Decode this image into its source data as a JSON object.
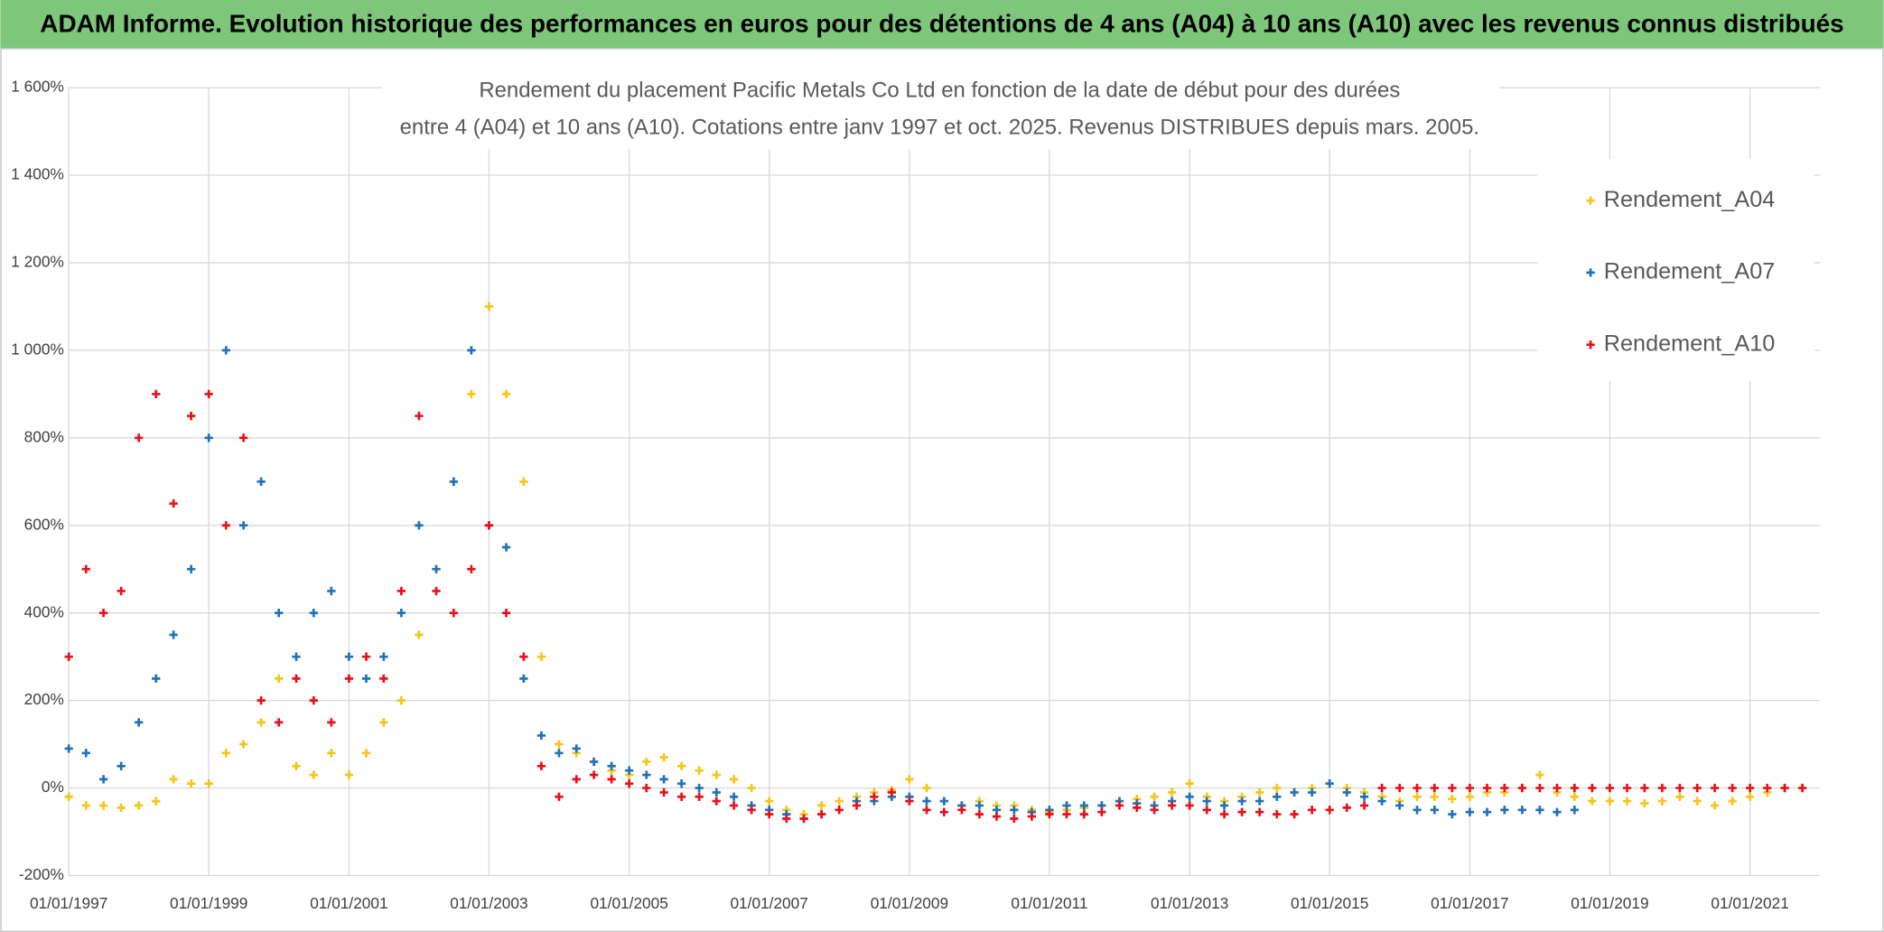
{
  "heading": "ADAM Informe. Evolution historique des performances en euros pour des détentions de 4 ans (A04) à 10 ans (A10) avec les revenus connus distribués",
  "chart_data": {
    "type": "scatter",
    "title": [
      "Rendement du placement Pacific Metals Co Ltd en fonction de la date de début pour des durées",
      "entre 4 (A04) et 10 ans (A10). Cotations entre janv 1997 et oct. 2025. Revenus DISTRIBUES depuis mars. 2005."
    ],
    "x": [
      "1997-01-01",
      "1997-04-01",
      "1997-07-01",
      "1997-10-01",
      "1998-01-01",
      "1998-04-01",
      "1998-07-01",
      "1998-10-01",
      "1999-01-01",
      "1999-04-01",
      "1999-07-01",
      "1999-10-01",
      "2000-01-01",
      "2000-04-01",
      "2000-07-01",
      "2000-10-01",
      "2001-01-01",
      "2001-04-01",
      "2001-07-01",
      "2001-10-01",
      "2002-01-01",
      "2002-04-01",
      "2002-07-01",
      "2002-10-01",
      "2003-01-01",
      "2003-04-01",
      "2003-07-01",
      "2003-10-01",
      "2004-01-01",
      "2004-04-01",
      "2004-07-01",
      "2004-10-01",
      "2005-01-01",
      "2005-04-01",
      "2005-07-01",
      "2005-10-01",
      "2006-01-01",
      "2006-04-01",
      "2006-07-01",
      "2006-10-01",
      "2007-01-01",
      "2007-04-01",
      "2007-07-01",
      "2007-10-01",
      "2008-01-01",
      "2008-04-01",
      "2008-07-01",
      "2008-10-01",
      "2009-01-01",
      "2009-04-01",
      "2009-07-01",
      "2009-10-01",
      "2010-01-01",
      "2010-04-01",
      "2010-07-01",
      "2010-10-01",
      "2011-01-01",
      "2011-04-01",
      "2011-07-01",
      "2011-10-01",
      "2012-01-01",
      "2012-04-01",
      "2012-07-01",
      "2012-10-01",
      "2013-01-01",
      "2013-04-01",
      "2013-07-01",
      "2013-10-01",
      "2014-01-01",
      "2014-04-01",
      "2014-07-01",
      "2014-10-01",
      "2015-01-01",
      "2015-04-01",
      "2015-07-01",
      "2015-10-01",
      "2016-01-01",
      "2016-04-01",
      "2016-07-01",
      "2016-10-01",
      "2017-01-01",
      "2017-04-01",
      "2017-07-01",
      "2017-10-01",
      "2018-01-01",
      "2018-04-01",
      "2018-07-01",
      "2018-10-01",
      "2019-01-01",
      "2019-04-01",
      "2019-07-01",
      "2019-10-01",
      "2020-01-01",
      "2020-04-01",
      "2020-07-01",
      "2020-10-01",
      "2021-01-01",
      "2021-04-01",
      "2021-07-01",
      "2021-10-01"
    ],
    "series": [
      {
        "name": "Rendement_A04",
        "color": "#f5c518",
        "values": [
          -20,
          -40,
          -40,
          -45,
          -40,
          -30,
          20,
          10,
          10,
          80,
          100,
          150,
          250,
          50,
          30,
          80,
          30,
          80,
          150,
          200,
          350,
          500,
          700,
          900,
          1100,
          900,
          700,
          300,
          100,
          80,
          60,
          40,
          30,
          60,
          70,
          50,
          40,
          30,
          20,
          0,
          -30,
          -50,
          -60,
          -40,
          -30,
          -20,
          -10,
          -5,
          20,
          0,
          -30,
          -40,
          -30,
          -40,
          -40,
          -50,
          -55,
          -50,
          -45,
          -40,
          -30,
          -25,
          -20,
          -10,
          10,
          -20,
          -30,
          -20,
          -10,
          0,
          -10,
          0,
          10,
          0,
          -10,
          -20,
          -30,
          -20,
          -20,
          -25,
          -20,
          -10,
          -10,
          0,
          30,
          -10,
          -20,
          -30,
          -30,
          -30,
          -35,
          -30,
          -20,
          -30,
          -40,
          -30,
          -20,
          -10,
          0,
          0
        ]
      },
      {
        "name": "Rendement_A07",
        "color": "#1f72b8",
        "values": [
          90,
          80,
          20,
          50,
          150,
          250,
          350,
          500,
          800,
          1000,
          600,
          700,
          400,
          300,
          400,
          450,
          300,
          250,
          300,
          400,
          600,
          500,
          700,
          1000,
          600,
          550,
          250,
          120,
          80,
          90,
          60,
          50,
          40,
          30,
          20,
          10,
          0,
          -10,
          -20,
          -40,
          -50,
          -60,
          -70,
          -60,
          -50,
          -30,
          -30,
          -20,
          -20,
          -30,
          -30,
          -40,
          -40,
          -50,
          -50,
          -55,
          -50,
          -40,
          -40,
          -40,
          -30,
          -35,
          -40,
          -30,
          -20,
          -30,
          -40,
          -30,
          -30,
          -20,
          -10,
          -10,
          10,
          -10,
          -20,
          -30,
          -40,
          -50,
          -50,
          -60,
          -55,
          -55,
          -50,
          -50,
          -50,
          -55,
          -50,
          null,
          null,
          null,
          null,
          null,
          null,
          null,
          null,
          null,
          null,
          null,
          null,
          null
        ]
      },
      {
        "name": "Rendement_A10",
        "color": "#e8101a",
        "values": [
          300,
          500,
          400,
          450,
          800,
          900,
          650,
          850,
          900,
          600,
          800,
          200,
          150,
          250,
          200,
          150,
          250,
          300,
          250,
          450,
          850,
          450,
          400,
          500,
          600,
          400,
          300,
          50,
          -20,
          20,
          30,
          20,
          10,
          0,
          -10,
          -20,
          -20,
          -30,
          -40,
          -50,
          -60,
          -70,
          -70,
          -60,
          -50,
          -40,
          -20,
          -10,
          -30,
          -50,
          -55,
          -50,
          -60,
          -65,
          -70,
          -65,
          -60,
          -60,
          -60,
          -55,
          -40,
          -45,
          -50,
          -40,
          -40,
          -50,
          -60,
          -55,
          -55,
          -60,
          -60,
          -50,
          -50,
          -45,
          -40,
          0,
          0,
          0,
          0,
          0,
          0,
          0,
          0,
          0,
          0,
          0,
          0,
          0,
          0,
          0,
          0,
          0,
          0,
          0,
          0,
          0,
          0,
          0,
          0,
          0
        ]
      }
    ],
    "xlim": [
      "1997-01-01",
      "2022-01-01"
    ],
    "xticks": [
      {
        "value": "1997-01-01",
        "label": "01/01/1997"
      },
      {
        "value": "1999-01-01",
        "label": "01/01/1999"
      },
      {
        "value": "2001-01-01",
        "label": "01/01/2001"
      },
      {
        "value": "2003-01-01",
        "label": "01/01/2003"
      },
      {
        "value": "2005-01-01",
        "label": "01/01/2005"
      },
      {
        "value": "2007-01-01",
        "label": "01/01/2007"
      },
      {
        "value": "2009-01-01",
        "label": "01/01/2009"
      },
      {
        "value": "2011-01-01",
        "label": "01/01/2011"
      },
      {
        "value": "2013-01-01",
        "label": "01/01/2013"
      },
      {
        "value": "2015-01-01",
        "label": "01/01/2015"
      },
      {
        "value": "2017-01-01",
        "label": "01/01/2017"
      },
      {
        "value": "2019-01-01",
        "label": "01/01/2019"
      },
      {
        "value": "2021-01-01",
        "label": "01/01/2021"
      }
    ],
    "ylim": [
      -200,
      1600
    ],
    "yticks": [
      {
        "value": -200,
        "label": "-200%"
      },
      {
        "value": 0,
        "label": "0%"
      },
      {
        "value": 200,
        "label": "200%"
      },
      {
        "value": 400,
        "label": "400%"
      },
      {
        "value": 600,
        "label": "600%"
      },
      {
        "value": 800,
        "label": "800%"
      },
      {
        "value": 1000,
        "label": "1 000%"
      },
      {
        "value": 1200,
        "label": "1 200%"
      },
      {
        "value": 1400,
        "label": "1 400%"
      },
      {
        "value": 1600,
        "label": "1 600%"
      }
    ],
    "grid": true,
    "legend": "upper right"
  }
}
